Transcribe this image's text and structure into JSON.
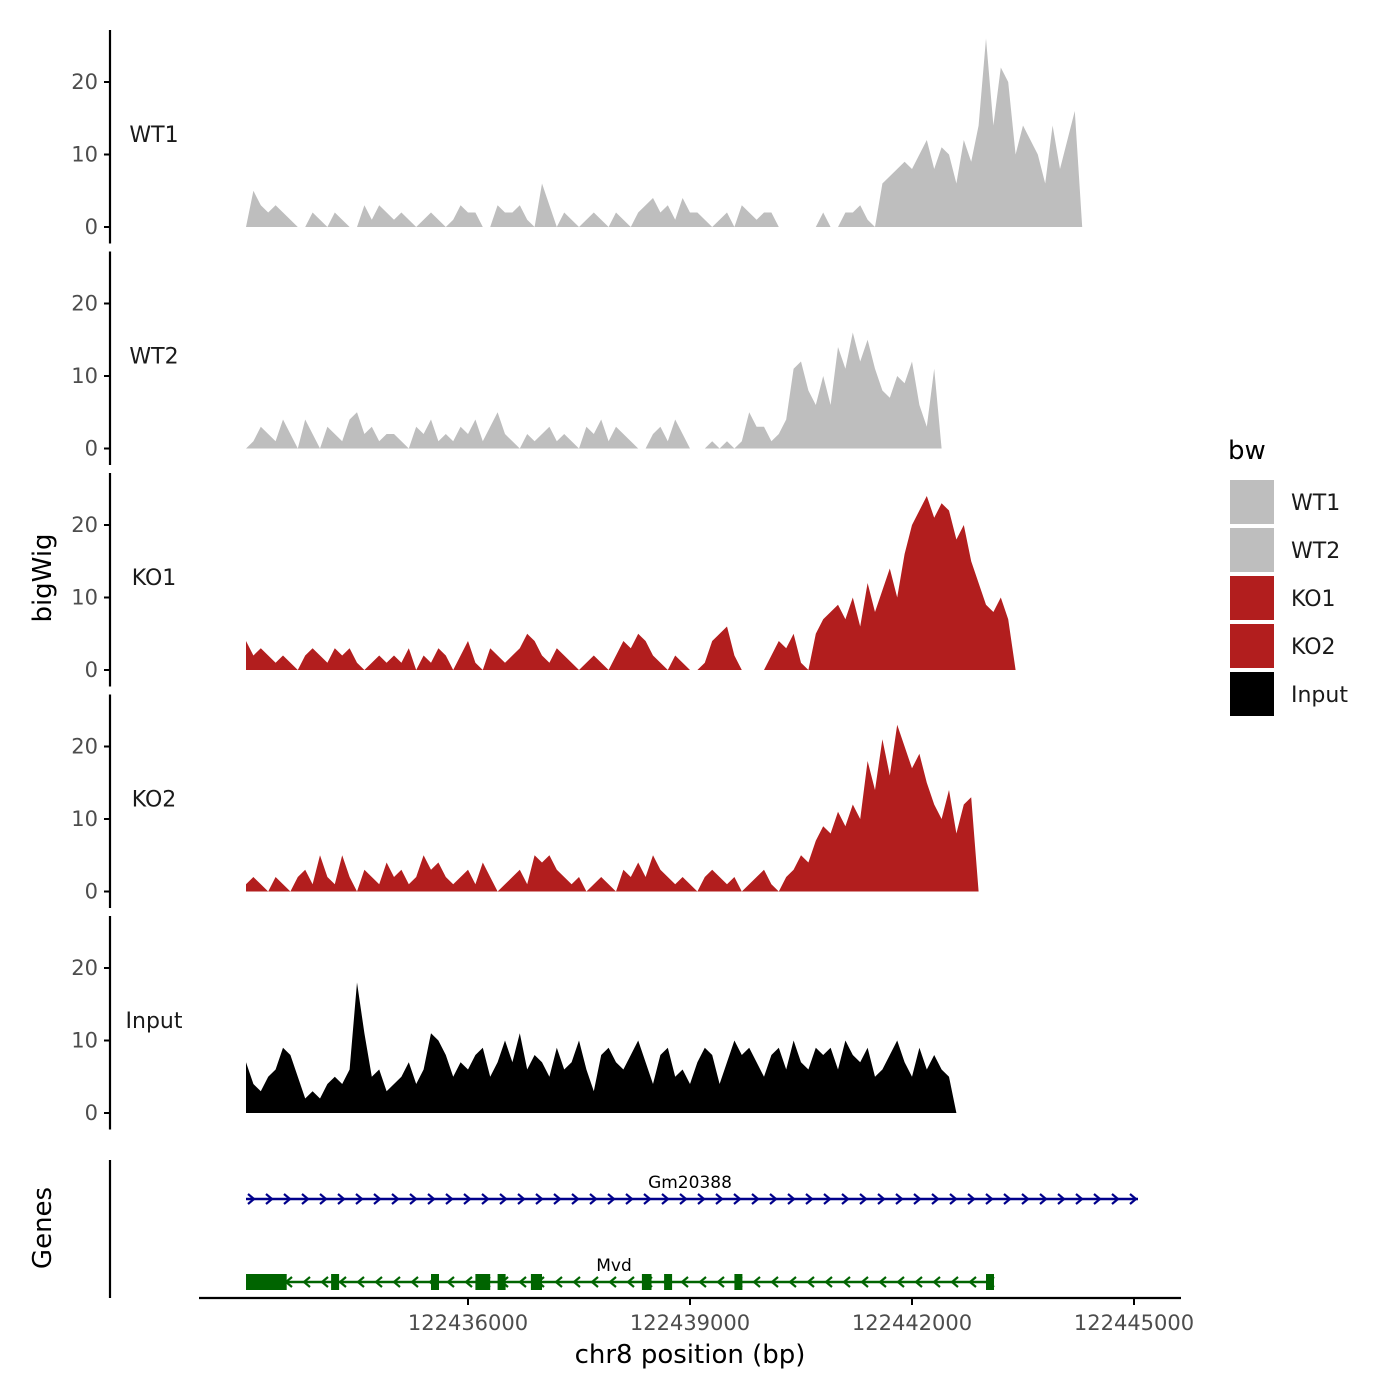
{
  "chart_data": {
    "type": "area",
    "chromosome": "chr8",
    "region": [
      122433000,
      122445300
    ],
    "xlabel": "chr8 position (bp)",
    "x_ticks": [
      122436000,
      122439000,
      122442000,
      122445000
    ],
    "x_tick_labels": [
      "122436000",
      "122439000",
      "122442000",
      "122445000"
    ],
    "ylabel": "bigWig",
    "ylim": [
      0,
      27
    ],
    "y_ticks": [
      0,
      10,
      20
    ],
    "y_tick_labels": [
      "0",
      "10",
      "20"
    ],
    "legend": {
      "title": "bw",
      "placement": "right",
      "entries": [
        {
          "label": "WT1",
          "color": "#bebebe"
        },
        {
          "label": "WT2",
          "color": "#bebebe"
        },
        {
          "label": "KO1",
          "color": "#b21e1e"
        },
        {
          "label": "KO2",
          "color": "#b21e1e"
        },
        {
          "label": "Input",
          "color": "#000000"
        }
      ]
    },
    "series": [
      {
        "name": "WT1",
        "color": "#bebebe",
        "x_start": 122433000,
        "x_step": 100,
        "values": [
          0,
          5,
          3,
          2,
          3,
          2,
          1,
          0,
          0,
          2,
          1,
          0,
          2,
          1,
          0,
          0,
          3,
          1,
          3,
          2,
          1,
          2,
          1,
          0,
          1,
          2,
          1,
          0,
          1,
          3,
          2,
          2,
          0,
          0,
          3,
          2,
          2,
          3,
          1,
          0,
          6,
          3,
          0,
          2,
          1,
          0,
          1,
          2,
          1,
          0,
          2,
          1,
          0,
          2,
          3,
          4,
          2,
          3,
          1,
          4,
          2,
          2,
          1,
          0,
          1,
          2,
          0,
          3,
          2,
          1,
          2,
          2,
          0,
          0,
          0,
          0,
          0,
          0,
          2,
          0,
          0,
          2,
          2,
          3,
          1,
          0,
          6,
          7,
          8,
          9,
          8,
          10,
          12,
          8,
          11,
          10,
          6,
          12,
          9,
          14,
          26,
          14,
          22,
          20,
          10,
          14,
          12,
          10,
          6,
          14,
          8,
          12,
          16,
          0,
          0,
          0,
          0,
          0,
          0,
          0,
          0,
          0,
          0,
          0,
          0
        ]
      },
      {
        "name": "WT2",
        "color": "#bebebe",
        "x_start": 122433000,
        "x_step": 100,
        "values": [
          0,
          1,
          3,
          2,
          1,
          4,
          2,
          0,
          4,
          2,
          0,
          3,
          2,
          1,
          4,
          5,
          2,
          3,
          1,
          2,
          2,
          1,
          0,
          3,
          2,
          4,
          1,
          2,
          1,
          3,
          2,
          4,
          1,
          3,
          5,
          2,
          1,
          0,
          2,
          1,
          2,
          3,
          1,
          2,
          1,
          0,
          3,
          2,
          4,
          1,
          3,
          2,
          1,
          0,
          0,
          2,
          3,
          1,
          4,
          2,
          0,
          0,
          0,
          1,
          0,
          1,
          0,
          1,
          5,
          3,
          3,
          1,
          2,
          4,
          11,
          12,
          8,
          6,
          10,
          6,
          14,
          11,
          16,
          12,
          15,
          11,
          8,
          7,
          10,
          9,
          12,
          6,
          3,
          11,
          0,
          0,
          0,
          0,
          0,
          0,
          0,
          0,
          0,
          0,
          0,
          0,
          0,
          0,
          0,
          0,
          0,
          0,
          0,
          0,
          0,
          0,
          0,
          0,
          0,
          0,
          0,
          0,
          0,
          0
        ]
      },
      {
        "name": "KO1",
        "color": "#b21e1e",
        "x_start": 122433000,
        "x_step": 100,
        "values": [
          4,
          2,
          3,
          2,
          1,
          2,
          1,
          0,
          2,
          3,
          2,
          1,
          3,
          2,
          3,
          1,
          0,
          1,
          2,
          1,
          2,
          1,
          3,
          0,
          2,
          1,
          3,
          2,
          0,
          2,
          4,
          1,
          0,
          3,
          2,
          1,
          2,
          3,
          5,
          4,
          2,
          1,
          3,
          2,
          1,
          0,
          1,
          2,
          1,
          0,
          2,
          4,
          3,
          5,
          4,
          2,
          1,
          0,
          2,
          1,
          0,
          0,
          1,
          4,
          5,
          6,
          2,
          0,
          0,
          0,
          0,
          2,
          4,
          3,
          5,
          1,
          0,
          5,
          7,
          8,
          9,
          7,
          10,
          6,
          12,
          8,
          11,
          14,
          10,
          16,
          20,
          22,
          24,
          21,
          23,
          22,
          18,
          20,
          15,
          12,
          9,
          8,
          10,
          7,
          0,
          0,
          0,
          0,
          0,
          0,
          0,
          0,
          0,
          0,
          0,
          0,
          0,
          0,
          0,
          0,
          0,
          0,
          0,
          0,
          0
        ]
      },
      {
        "name": "KO2",
        "color": "#b21e1e",
        "x_start": 122433000,
        "x_step": 100,
        "values": [
          1,
          2,
          1,
          0,
          2,
          1,
          0,
          2,
          3,
          1,
          5,
          2,
          1,
          5,
          2,
          0,
          3,
          2,
          1,
          4,
          2,
          3,
          1,
          2,
          5,
          3,
          4,
          2,
          1,
          2,
          3,
          1,
          4,
          2,
          0,
          1,
          2,
          3,
          1,
          5,
          4,
          5,
          3,
          2,
          1,
          2,
          0,
          1,
          2,
          1,
          0,
          3,
          2,
          4,
          2,
          5,
          3,
          2,
          1,
          2,
          1,
          0,
          2,
          3,
          2,
          1,
          2,
          0,
          1,
          2,
          3,
          1,
          0,
          2,
          3,
          5,
          4,
          7,
          9,
          8,
          11,
          9,
          12,
          10,
          18,
          14,
          21,
          16,
          23,
          20,
          17,
          19,
          15,
          12,
          10,
          14,
          8,
          12,
          13,
          0,
          0,
          0,
          0,
          0,
          0,
          0,
          0,
          0,
          0,
          0,
          0,
          0,
          0,
          0,
          0,
          0,
          0,
          0,
          0,
          0,
          0,
          0,
          0,
          0,
          0
        ]
      },
      {
        "name": "Input",
        "color": "#000000",
        "x_start": 122433000,
        "x_step": 100,
        "values": [
          7,
          4,
          3,
          5,
          6,
          9,
          8,
          5,
          2,
          3,
          2,
          4,
          5,
          4,
          6,
          18,
          11,
          5,
          6,
          3,
          4,
          5,
          7,
          4,
          6,
          11,
          10,
          8,
          5,
          7,
          6,
          8,
          9,
          5,
          7,
          10,
          7,
          11,
          6,
          8,
          7,
          5,
          9,
          6,
          7,
          10,
          6,
          3,
          8,
          9,
          7,
          6,
          8,
          10,
          7,
          4,
          8,
          9,
          5,
          6,
          4,
          7,
          9,
          8,
          4,
          7,
          10,
          8,
          9,
          7,
          5,
          8,
          9,
          6,
          10,
          7,
          6,
          9,
          8,
          9,
          6,
          10,
          8,
          7,
          9,
          5,
          6,
          8,
          10,
          7,
          5,
          9,
          6,
          8,
          6,
          5,
          0,
          0,
          0,
          0,
          0,
          0,
          0,
          0,
          0,
          0,
          0,
          0,
          0,
          0,
          0,
          0,
          0,
          0,
          0,
          0,
          0,
          0,
          0,
          0,
          0
        ]
      }
    ],
    "genes_track": {
      "label": "Genes",
      "genes": [
        {
          "name": "Gm20388",
          "color": "#00008b",
          "strand": "+",
          "start": 122433000,
          "end": 122445400,
          "exons": []
        },
        {
          "name": "Mvd",
          "color": "#006400",
          "strand": "-",
          "start": 122433000,
          "end": 122443100,
          "exons": [
            [
              122433000,
              122433550
            ],
            [
              122434150,
              122434250
            ],
            [
              122435500,
              122435600
            ],
            [
              122436100,
              122436300
            ],
            [
              122436400,
              122436500
            ],
            [
              122436850,
              122437000
            ],
            [
              122438350,
              122438480
            ],
            [
              122438650,
              122438750
            ],
            [
              122439600,
              122439680
            ],
            [
              122443000,
              122443100
            ]
          ]
        }
      ]
    }
  }
}
